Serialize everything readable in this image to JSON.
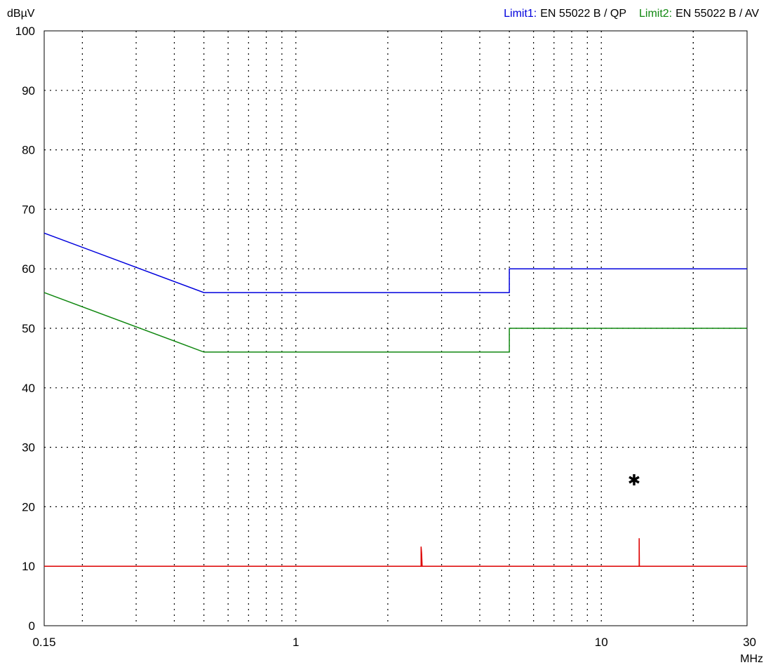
{
  "chart_data": {
    "type": "line",
    "y_unit": "dBµV",
    "x_unit": "MHz",
    "x_scale": "log",
    "xlim": [
      0.15,
      30
    ],
    "ylim": [
      0,
      100
    ],
    "grid": true,
    "legend_position": "top-right",
    "x_ticks": [
      {
        "value": 0.15,
        "label": "0.15"
      },
      {
        "value": 1,
        "label": "1"
      },
      {
        "value": 10,
        "label": "10"
      },
      {
        "value": 30,
        "label": "30"
      }
    ],
    "y_ticks": [
      {
        "value": 0,
        "label": "0"
      },
      {
        "value": 10,
        "label": "10"
      },
      {
        "value": 20,
        "label": "20"
      },
      {
        "value": 30,
        "label": "30"
      },
      {
        "value": 40,
        "label": "40"
      },
      {
        "value": 50,
        "label": "50"
      },
      {
        "value": 60,
        "label": "60"
      },
      {
        "value": 70,
        "label": "70"
      },
      {
        "value": 80,
        "label": "80"
      },
      {
        "value": 90,
        "label": "90"
      },
      {
        "value": 100,
        "label": "100"
      }
    ],
    "legend": [
      {
        "prefix": "Limit1:",
        "text": "EN 55022 B / QP",
        "color": "#0000dd"
      },
      {
        "prefix": "Limit2:",
        "text": "EN 55022 B / AV",
        "color": "#118811"
      }
    ],
    "series": [
      {
        "name": "Limit1",
        "color": "#0000dd",
        "points": [
          [
            0.15,
            66
          ],
          [
            0.5,
            56
          ],
          [
            5,
            56
          ],
          [
            5,
            60
          ],
          [
            30,
            60
          ]
        ]
      },
      {
        "name": "Limit2",
        "color": "#118811",
        "points": [
          [
            0.15,
            56
          ],
          [
            0.5,
            46
          ],
          [
            5,
            46
          ],
          [
            5,
            50
          ],
          [
            30,
            50
          ]
        ]
      },
      {
        "color": "#dd0000",
        "points": [
          [
            0.15,
            10
          ],
          [
            2.57,
            10
          ],
          [
            2.57,
            13.3
          ],
          [
            2.58,
            12.2
          ],
          [
            2.59,
            10
          ],
          [
            13.3,
            10
          ],
          [
            13.3,
            14.7
          ],
          [
            13.32,
            10
          ],
          [
            30,
            10
          ]
        ]
      }
    ],
    "markers": [
      {
        "x": 12.8,
        "y": 24.5,
        "symbol": "✱"
      }
    ]
  }
}
